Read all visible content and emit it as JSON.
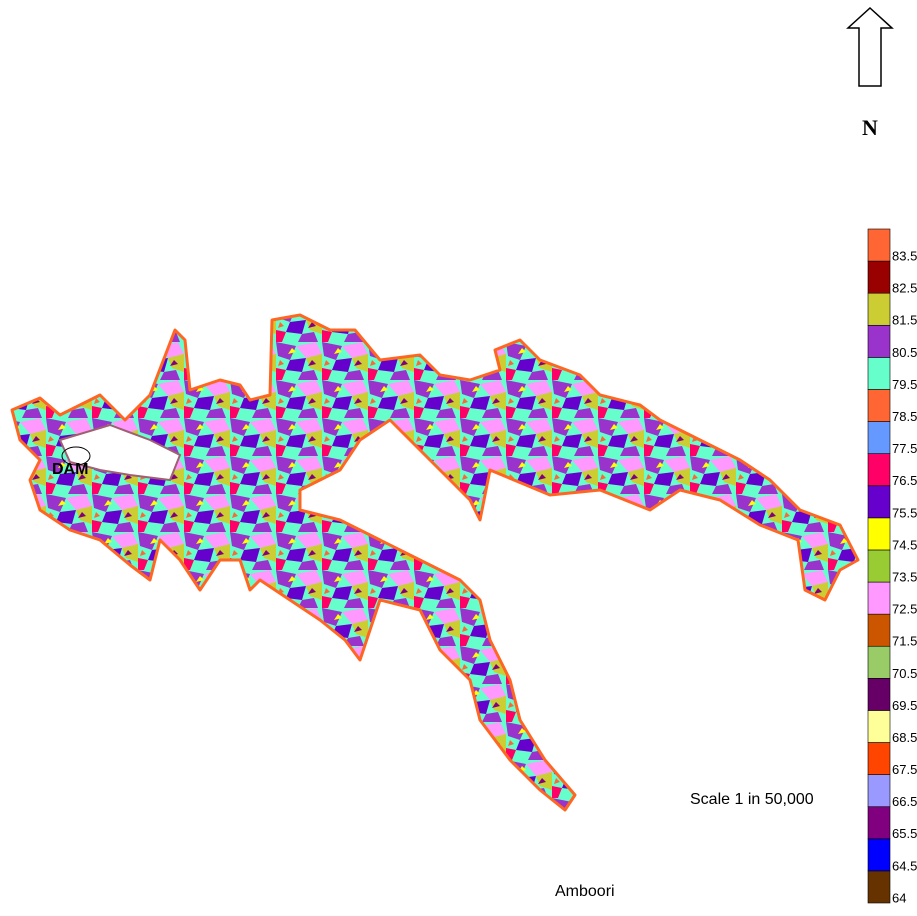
{
  "north_label": "N",
  "dam_label": "DAM",
  "place_label": "Amboori",
  "scale_label": "Scale 1 in 50,000",
  "legend": {
    "levels": [
      64,
      64.5,
      65.5,
      66.5,
      67.5,
      68.5,
      69.5,
      70.5,
      71.5,
      72.5,
      73.5,
      74.5,
      75.5,
      76.5,
      77.5,
      78.5,
      79.5,
      80.5,
      81.5,
      82.5,
      83.5
    ],
    "colors": [
      "#663300",
      "#0000ff",
      "#800080",
      "#9999ff",
      "#ff4500",
      "#ffff99",
      "#660066",
      "#99cc66",
      "#cc5500",
      "#ff99ff",
      "#99cc33",
      "#ffff00",
      "#6600cc",
      "#ff0066",
      "#6699ff",
      "#ff6633",
      "#66ffcc",
      "#9933cc",
      "#cccc33",
      "#990000",
      "#ff6633"
    ]
  }
}
